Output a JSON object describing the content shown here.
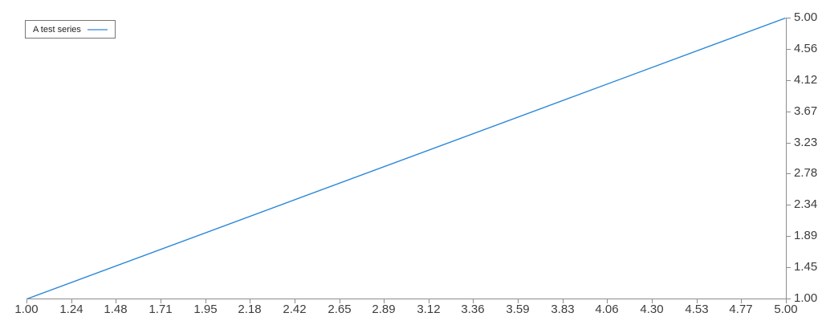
{
  "chart_data": {
    "type": "line",
    "title": "",
    "xlabel": "",
    "ylabel": "",
    "xlim": [
      1.0,
      5.0
    ],
    "ylim": [
      1.0,
      5.0
    ],
    "grid": false,
    "y_axis_side": "right",
    "x_axis_side": "bottom",
    "axis_color": "#8c8c8c",
    "tick_label_color": "#3d3d3d",
    "background_color": "#ffffff",
    "legend": {
      "position": "top-left-inside",
      "border_color": "#777777",
      "items": [
        {
          "label": "A test series",
          "swatch_color": "#7fb3e8"
        }
      ]
    },
    "series": [
      {
        "name": "A test series",
        "color": "#2b87d8",
        "points": [
          [
            1.0,
            1.0
          ],
          [
            5.0,
            5.0
          ]
        ]
      }
    ],
    "x_tick_labels": [
      "1.00",
      "1.24",
      "1.48",
      "1.71",
      "1.95",
      "2.18",
      "2.42",
      "2.65",
      "2.89",
      "3.12",
      "3.36",
      "3.59",
      "3.83",
      "4.06",
      "4.30",
      "4.53",
      "4.77",
      "5.00"
    ],
    "y_tick_labels_top_to_bottom": [
      "5.00",
      "4.56",
      "4.12",
      "3.67",
      "3.23",
      "2.78",
      "2.34",
      "1.89",
      "1.45",
      "1.00"
    ]
  }
}
